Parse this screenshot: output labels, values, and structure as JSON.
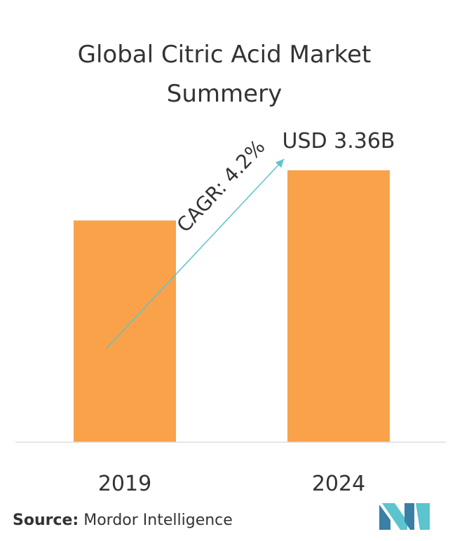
{
  "chart_data": {
    "type": "bar",
    "title": "Global Citric Acid Market Summery",
    "categories": [
      "2019",
      "2024"
    ],
    "values": [
      2.74,
      3.36
    ],
    "value_labels": [
      "",
      "USD 3.36B"
    ],
    "ylim": [
      0,
      3.36
    ],
    "bar_color": "#F9A24A",
    "annotation": "CAGR: 4.2%",
    "annotation_color": "#5BC4CE",
    "grid": false,
    "legend": "none"
  },
  "footer": {
    "source_label": "Source:",
    "source_text": "Mordor Intelligence",
    "logo_colors": [
      "#3A7FA6",
      "#5BC4CE"
    ]
  }
}
